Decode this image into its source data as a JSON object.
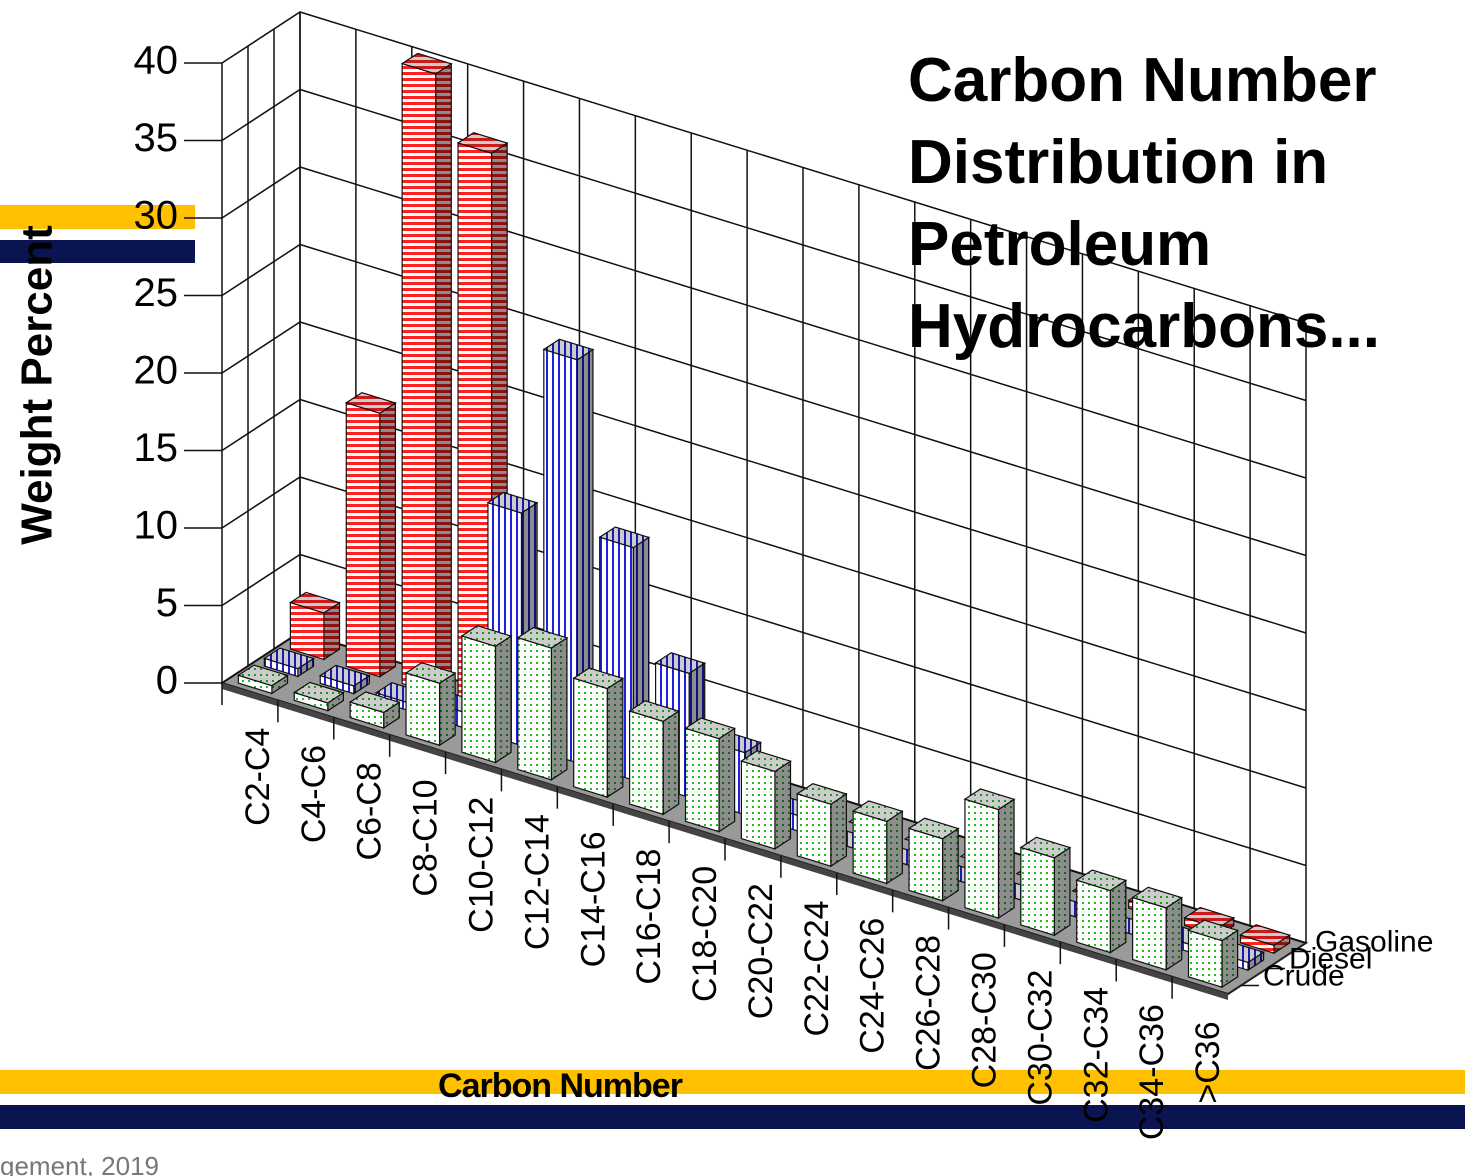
{
  "chart_data": {
    "type": "bar3d",
    "title": "Carbon Number Distribution in Petroleum Hydrocarbons...",
    "ylabel": "Weight Percent",
    "xlabel": "Carbon Number",
    "footer": "gement, 2019",
    "categories": [
      "C2-C4",
      "C4-C6",
      "C6-C8",
      "C8-C10",
      "C10-C12",
      "C12-C14",
      "C14-C16",
      "C16-C18",
      "C18-C20",
      "C20-C22",
      "C22-C24",
      "C24-C26",
      "C26-C28",
      "C28-C30",
      "C30-C32",
      "C32-C34",
      "C34-C36",
      ">C36"
    ],
    "series": [
      {
        "name": "Gasoline",
        "color": "#ff2020",
        "values": [
          3,
          17,
          40,
          36,
          2,
          0.5,
          0,
          0,
          0,
          0,
          0,
          0,
          0,
          0,
          0,
          0.5,
          0.5,
          0.5
        ]
      },
      {
        "name": "Diesel",
        "color": "#2020e0",
        "values": [
          0.5,
          0.5,
          0.5,
          1,
          15,
          26,
          15,
          8,
          4,
          1,
          0,
          0,
          0,
          0,
          0,
          0,
          0.5,
          0.5
        ]
      },
      {
        "name": "Crude",
        "color": "#20c020",
        "values": [
          0.5,
          0.5,
          1,
          4,
          7.5,
          8.5,
          7,
          6,
          6,
          5,
          4,
          4,
          4,
          7,
          5,
          4,
          4,
          3
        ]
      }
    ],
    "ylim": [
      0,
      40
    ],
    "yticks": [
      0,
      5,
      10,
      15,
      20,
      25,
      30,
      35,
      40
    ],
    "grid": true
  }
}
